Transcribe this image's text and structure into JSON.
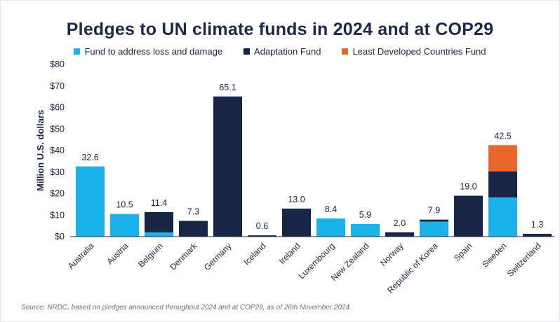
{
  "chart_data": {
    "type": "bar",
    "stacked": true,
    "title": "Pledges to UN climate funds in 2024 and at COP29",
    "ylabel": "Million U.S. dollars",
    "xlabel": "",
    "ylim": [
      0,
      80
    ],
    "yticks": [
      0,
      10,
      20,
      30,
      40,
      50,
      60,
      70,
      80
    ],
    "ytick_labels": [
      "$0",
      "$10",
      "$20",
      "$30",
      "$40",
      "$50",
      "$60",
      "$70",
      "$80"
    ],
    "grid": false,
    "legend_position": "top",
    "categories": [
      "Australia",
      "Austria",
      "Belgium",
      "Denmark",
      "Germany",
      "Iceland",
      "Ireland",
      "Luxembourg",
      "New Zealand",
      "Norway",
      "Republic of Korea",
      "Spain",
      "Sweden",
      "Switzerland"
    ],
    "series": [
      {
        "name": "Fund to address loss and damage",
        "color": "#1ab2e8",
        "values": [
          32.6,
          10.5,
          2.0,
          0,
          0,
          0,
          0,
          8.4,
          5.9,
          0,
          7.0,
          0,
          18.2,
          0
        ]
      },
      {
        "name": "Adaptation Fund",
        "color": "#172546",
        "values": [
          0,
          0,
          9.4,
          7.3,
          65.1,
          0.6,
          13.0,
          0,
          0,
          2.0,
          0.9,
          19.0,
          12.1,
          1.3
        ]
      },
      {
        "name": "Least Developed Countries Fund",
        "color": "#e8652b",
        "values": [
          0,
          0,
          0,
          0,
          0,
          0,
          0,
          0,
          0,
          0,
          0,
          0,
          12.2,
          0
        ]
      }
    ],
    "totals": [
      "32.6",
      "10.5",
      "11.4",
      "7.3",
      "65.1",
      "0.6",
      "13.0",
      "8.4",
      "5.9",
      "2.0",
      "7.9",
      "19.0",
      "42.5",
      "1.3"
    ]
  },
  "source": "Source: NRDC, based on pledges announced throughout 2024 and at COP29, as of 26th November 2024."
}
